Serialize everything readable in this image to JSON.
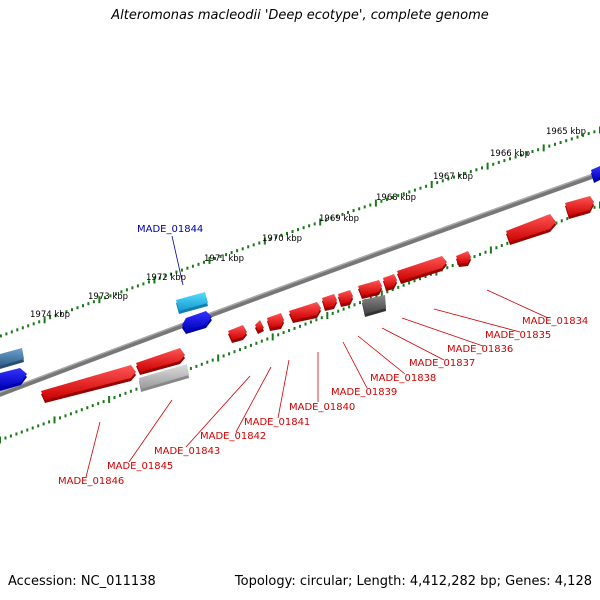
{
  "title": "Alteromonas macleodii 'Deep ecotype', complete genome",
  "footer": {
    "accession": "Accession: NC_011138",
    "summary": "Topology: circular; Length: 4,412,282 bp; Genes: 4,128"
  },
  "scale_labels": [
    "1965 kbp",
    "1966 kbp",
    "1967 kbp",
    "1968 kbp",
    "1969 kbp",
    "1970 kbp",
    "1971 kbp",
    "1972 kbp",
    "1973 kbp",
    "1974 kbp"
  ],
  "gene_labels": [
    {
      "text": "MADE_01834",
      "color": "#d40000"
    },
    {
      "text": "MADE_01835",
      "color": "#d40000"
    },
    {
      "text": "MADE_01836",
      "color": "#d40000"
    },
    {
      "text": "MADE_01837",
      "color": "#d40000"
    },
    {
      "text": "MADE_01838",
      "color": "#d40000"
    },
    {
      "text": "MADE_01839",
      "color": "#d40000"
    },
    {
      "text": "MADE_01840",
      "color": "#d40000"
    },
    {
      "text": "MADE_01841",
      "color": "#d40000"
    },
    {
      "text": "MADE_01842",
      "color": "#d40000"
    },
    {
      "text": "MADE_01843",
      "color": "#d40000"
    },
    {
      "text": "MADE_01844",
      "color": "#0000aa"
    },
    {
      "text": "MADE_01845",
      "color": "#d40000"
    },
    {
      "text": "MADE_01846",
      "color": "#d40000"
    }
  ],
  "colors": {
    "backbone": "#888888",
    "ticks": "#1a7a1a",
    "forward_gene": "#ee1111",
    "reverse_gene": "#1111dd",
    "light_blue_gene": "#29b6e8",
    "grey_gene": "#666666",
    "light_grey_gene": "#bbbbbb",
    "steel_gene": "#4a7fb0"
  }
}
